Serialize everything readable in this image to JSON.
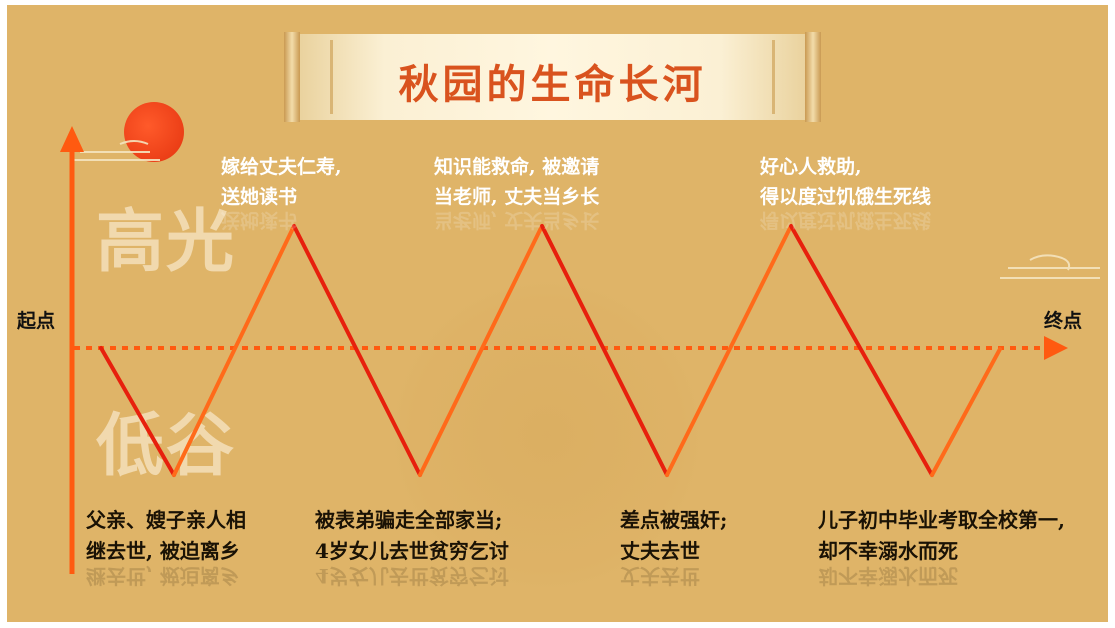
{
  "title": "秋园的生命长河",
  "axis": {
    "start_label": "起点",
    "end_label": "终点"
  },
  "zones": {
    "high": "高光",
    "low": "低谷"
  },
  "highlights": [
    {
      "line1": "嫁给丈夫仁寿,",
      "line2": "送她读书"
    },
    {
      "line1": "知识能救命, 被邀请",
      "line2": "当老师, 丈夫当乡长"
    },
    {
      "line1": "好心人救助,",
      "line2": "得以度过饥饿生死线"
    }
  ],
  "lows": [
    {
      "line1": "父亲、嫂子亲人相",
      "line2": "继去世, 被迫离乡"
    },
    {
      "line1": "被表弟骗走全部家当;",
      "line2": "4岁女儿去世贫穷乞讨"
    },
    {
      "line1": "差点被强奸;",
      "line2": "丈夫去世"
    },
    {
      "line1": "儿子初中毕业考取全校第一,",
      "line2": "却不幸溺水而死"
    }
  ],
  "colors": {
    "background": "#dfb468",
    "line_light": "#ff6a1a",
    "line_dark": "#e21a0c",
    "axis": "#ff5a10",
    "title": "#d9531e"
  }
}
